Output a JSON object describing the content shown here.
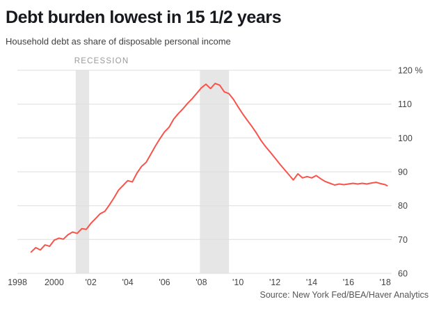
{
  "header": {
    "title": "Debt burden lowest in 15 1/2 years",
    "subtitle": "Household debt as share of disposable personal income"
  },
  "footer": {
    "source": "Source: New York Fed/BEA/Haver Analytics"
  },
  "chart_data": {
    "type": "line",
    "title": "Debt burden lowest in 15 1/2 years",
    "subtitle": "Household debt as share of disposable personal income",
    "xlabel": "",
    "ylabel": "%",
    "xlim": [
      1998,
      2018.35
    ],
    "ylim": [
      60,
      120
    ],
    "grid": true,
    "legend_position": "none",
    "colors": {
      "line": "#f8534b",
      "grid": "#dddddd",
      "recession_band": "#e6e6e6",
      "recession_label": "#9a9a9a",
      "axis_text": "#444444"
    },
    "y_ticks": [
      {
        "v": 60,
        "label": "60"
      },
      {
        "v": 70,
        "label": "70"
      },
      {
        "v": 80,
        "label": "80"
      },
      {
        "v": 90,
        "label": "90"
      },
      {
        "v": 100,
        "label": "100"
      },
      {
        "v": 110,
        "label": "110"
      },
      {
        "v": 120,
        "label": "120 %"
      }
    ],
    "x_ticks": [
      {
        "v": 1998,
        "label": "1998"
      },
      {
        "v": 2000,
        "label": "2000"
      },
      {
        "v": 2002,
        "label": "'02"
      },
      {
        "v": 2004,
        "label": "'04"
      },
      {
        "v": 2006,
        "label": "'06"
      },
      {
        "v": 2008,
        "label": "'08"
      },
      {
        "v": 2010,
        "label": "'10"
      },
      {
        "v": 2012,
        "label": "'12"
      },
      {
        "v": 2014,
        "label": "'14"
      },
      {
        "v": 2016,
        "label": "'16"
      },
      {
        "v": 2018,
        "label": "'18"
      }
    ],
    "recessions": [
      {
        "label": "RECESSION",
        "start": 2001.17,
        "end": 2001.9
      },
      {
        "start": 2007.92,
        "end": 2009.5
      }
    ],
    "series": [
      {
        "name": "Household debt as share of disposable personal income",
        "color": "#f8534b",
        "points": [
          [
            1998.75,
            66.3
          ],
          [
            1999.0,
            67.6
          ],
          [
            1999.25,
            66.9
          ],
          [
            1999.5,
            68.4
          ],
          [
            1999.75,
            68.0
          ],
          [
            2000.0,
            69.8
          ],
          [
            2000.25,
            70.4
          ],
          [
            2000.5,
            70.1
          ],
          [
            2000.75,
            71.4
          ],
          [
            2001.0,
            72.2
          ],
          [
            2001.25,
            71.8
          ],
          [
            2001.5,
            73.2
          ],
          [
            2001.75,
            73.0
          ],
          [
            2002.0,
            74.8
          ],
          [
            2002.25,
            76.2
          ],
          [
            2002.5,
            77.6
          ],
          [
            2002.75,
            78.3
          ],
          [
            2003.0,
            80.2
          ],
          [
            2003.25,
            82.3
          ],
          [
            2003.5,
            84.6
          ],
          [
            2003.75,
            86.0
          ],
          [
            2004.0,
            87.4
          ],
          [
            2004.25,
            87.0
          ],
          [
            2004.5,
            89.6
          ],
          [
            2004.75,
            91.6
          ],
          [
            2005.0,
            92.8
          ],
          [
            2005.25,
            95.2
          ],
          [
            2005.5,
            97.6
          ],
          [
            2005.75,
            99.8
          ],
          [
            2006.0,
            101.8
          ],
          [
            2006.25,
            103.2
          ],
          [
            2006.5,
            105.6
          ],
          [
            2006.75,
            107.2
          ],
          [
            2007.0,
            108.6
          ],
          [
            2007.25,
            110.2
          ],
          [
            2007.5,
            111.6
          ],
          [
            2007.75,
            113.2
          ],
          [
            2008.0,
            114.8
          ],
          [
            2008.25,
            115.9
          ],
          [
            2008.5,
            114.6
          ],
          [
            2008.75,
            116.1
          ],
          [
            2009.0,
            115.6
          ],
          [
            2009.25,
            113.6
          ],
          [
            2009.5,
            113.1
          ],
          [
            2009.75,
            111.4
          ],
          [
            2010.0,
            109.2
          ],
          [
            2010.25,
            107.1
          ],
          [
            2010.5,
            105.2
          ],
          [
            2010.75,
            103.4
          ],
          [
            2011.0,
            101.4
          ],
          [
            2011.25,
            99.2
          ],
          [
            2011.5,
            97.4
          ],
          [
            2011.75,
            95.8
          ],
          [
            2012.0,
            94.1
          ],
          [
            2012.25,
            92.4
          ],
          [
            2012.5,
            90.8
          ],
          [
            2012.75,
            89.2
          ],
          [
            2013.0,
            87.6
          ],
          [
            2013.25,
            89.4
          ],
          [
            2013.5,
            88.2
          ],
          [
            2013.75,
            88.6
          ],
          [
            2014.0,
            88.2
          ],
          [
            2014.25,
            88.9
          ],
          [
            2014.5,
            87.9
          ],
          [
            2014.75,
            87.1
          ],
          [
            2015.0,
            86.6
          ],
          [
            2015.25,
            86.1
          ],
          [
            2015.5,
            86.4
          ],
          [
            2015.75,
            86.2
          ],
          [
            2016.0,
            86.4
          ],
          [
            2016.25,
            86.6
          ],
          [
            2016.5,
            86.4
          ],
          [
            2016.75,
            86.6
          ],
          [
            2017.0,
            86.4
          ],
          [
            2017.25,
            86.7
          ],
          [
            2017.5,
            86.9
          ],
          [
            2017.75,
            86.5
          ],
          [
            2018.0,
            86.2
          ],
          [
            2018.1,
            85.9
          ]
        ]
      }
    ]
  }
}
